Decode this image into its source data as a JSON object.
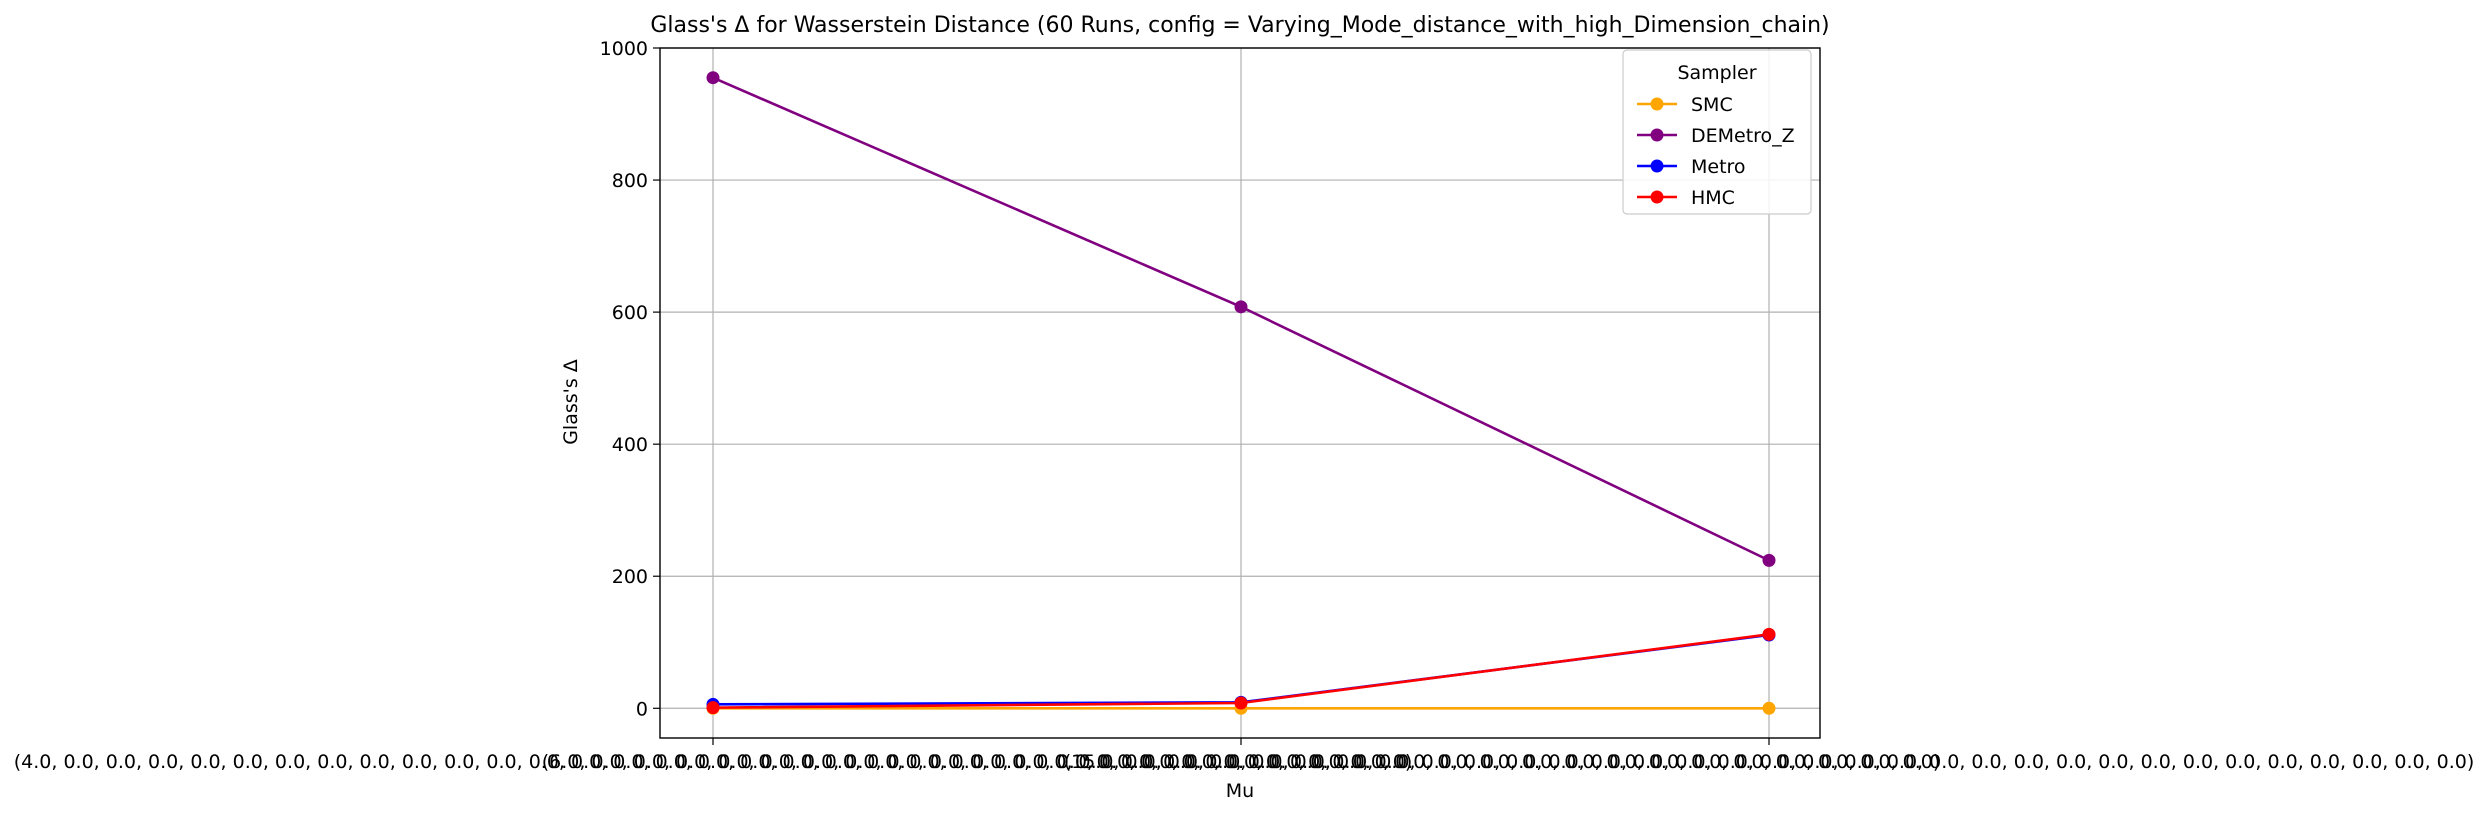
{
  "chart_data": {
    "type": "line",
    "title": "Glass's Δ for Wasserstein Distance (60 Runs, config = Varying_Mode_distance_with_high_Dimension_chain)",
    "xlabel": "Mu",
    "ylabel": "Glass's Δ",
    "categories": [
      "(4.0, 0.0, 0.0, 0.0, 0.0, 0.0, 0.0, 0.0, 0.0, 0.0, 0.0, 0.0, 0.0, 0.0, 0.0, 0.0, 0.0, 0.0, 0.0, 0.0, 0.0, 0.0, 0.0, 0.0, 0.0, 0.0, 0.0, 0.0, 0.0, 0.0, 0.0, 0.0, 0.0)",
      "(6.0, 0.0, 0.0, 0.0, 0.0, 0.0, 0.0, 0.0, 0.0, 0.0, 0.0, 0.0, 0.0, 0.0, 0.0, 0.0, 0.0, 0.0, 0.0, 0.0, 0.0, 0.0, 0.0, 0.0, 0.0, 0.0, 0.0, 0.0, 0.0, 0.0, 0.0, 0.0, 0.0)",
      "(15.0, 0.0, 0.0, 0.0, 0.0, 0.0, 0.0, 0.0, 0.0, 0.0, 0.0, 0.0, 0.0, 0.0, 0.0, 0.0, 0.0, 0.0, 0.0, 0.0, 0.0, 0.0, 0.0, 0.0, 0.0, 0.0, 0.0, 0.0, 0.0, 0.0, 0.0, 0.0, 0.0)"
    ],
    "ylim": [
      -45,
      1000
    ],
    "yticks": [
      0,
      200,
      400,
      600,
      800,
      1000
    ],
    "grid": true,
    "legend": {
      "title": "Sampler",
      "placement": "top-right"
    },
    "series": [
      {
        "name": "SMC",
        "color": "#FFA500",
        "values": [
          0,
          0,
          0
        ]
      },
      {
        "name": "DEMetro_Z",
        "color": "#800080",
        "values": [
          955,
          608,
          224
        ]
      },
      {
        "name": "Metro",
        "color": "#0000FF",
        "values": [
          6,
          9,
          111
        ]
      },
      {
        "name": "HMC",
        "color": "#FF0000",
        "values": [
          1,
          8,
          112
        ]
      }
    ]
  }
}
